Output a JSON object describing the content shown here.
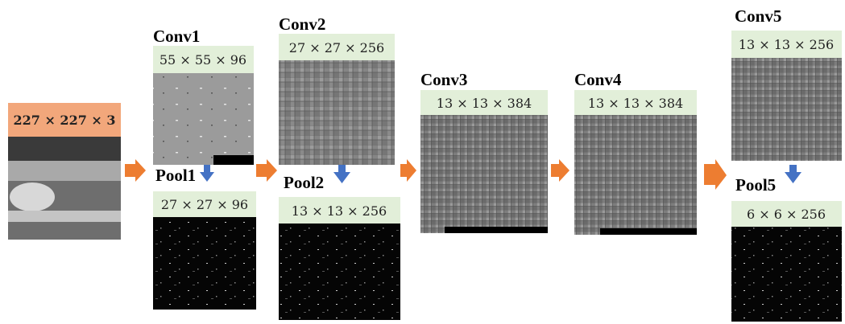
{
  "input": {
    "label": "227 × 227 × 3"
  },
  "layers": [
    {
      "name": "Conv1",
      "size": "55 × 55 × 96",
      "pool": {
        "name": "Pool1",
        "size": "27 × 27 × 96"
      }
    },
    {
      "name": "Conv2",
      "size": "27 × 27 × 256",
      "pool": {
        "name": "Pool2",
        "size": "13 × 13 × 256"
      }
    },
    {
      "name": "Conv3",
      "size": "13 × 13 × 384"
    },
    {
      "name": "Conv4",
      "size": "13 × 13 × 384"
    },
    {
      "name": "Conv5",
      "size": "13 × 13 × 256",
      "pool": {
        "name": "Pool5",
        "size": "6 × 6 × 256"
      }
    }
  ]
}
